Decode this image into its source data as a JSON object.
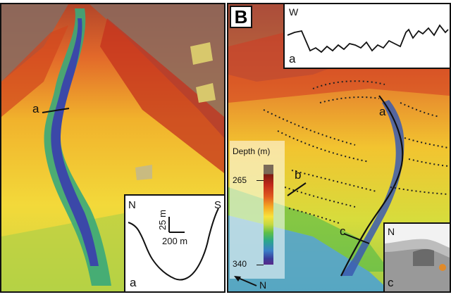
{
  "panel_b": {
    "letter": "B",
    "profile_w": {
      "side_label": "W",
      "profile_label": "a"
    },
    "profile_labels": {
      "a": "a",
      "b": "b",
      "c": "c"
    },
    "legend": {
      "title": "Depth (m)",
      "max": "265",
      "min": "340"
    },
    "north": "N",
    "echo_inset": {
      "north": "N",
      "label": "c"
    }
  },
  "panel_a": {
    "profile_label": "a",
    "inset": {
      "left": "N",
      "right": "S",
      "scale_v": "25 m",
      "scale_h": "200 m",
      "label": "a"
    }
  }
}
